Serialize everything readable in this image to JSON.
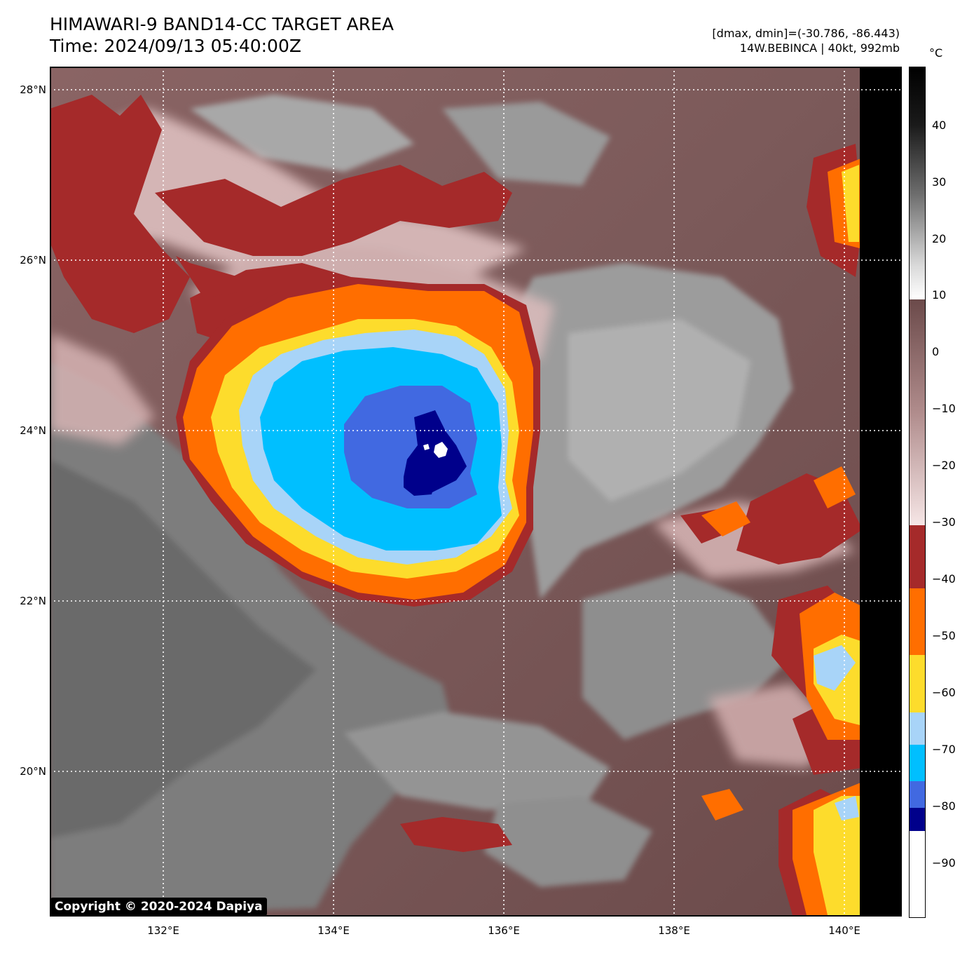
{
  "header": {
    "title_line1": "HIMAWARI-9 BAND14-CC TARGET AREA",
    "title_line2": "Time: 2024/09/13 05:40:00Z",
    "range_text": "[dmax, dmin]=(-30.786, -86.443)",
    "storm_text": "14W.BEBINCA | 40kt, 992mb"
  },
  "axes": {
    "lat_labels": [
      "28°N",
      "26°N",
      "24°N",
      "22°N",
      "20°N"
    ],
    "lon_labels": [
      "132°E",
      "134°E",
      "136°E",
      "138°E",
      "140°E"
    ]
  },
  "colorbar": {
    "unit": "°C",
    "ticks": [
      "40",
      "30",
      "20",
      "10",
      "0",
      "−10",
      "−20",
      "−30",
      "−40",
      "−50",
      "−60",
      "−70",
      "−80",
      "−90"
    ],
    "palette": {
      "dark_red": "#a52a2a",
      "orange": "#ff6e00",
      "yellow": "#fddc2c",
      "light_blue": "#a8d4f8",
      "cyan_blue": "#00bfff",
      "royal_blue": "#4169e1",
      "navy": "#00008b"
    }
  },
  "copyright": "Copyright © 2020-2024 Dapiya"
}
